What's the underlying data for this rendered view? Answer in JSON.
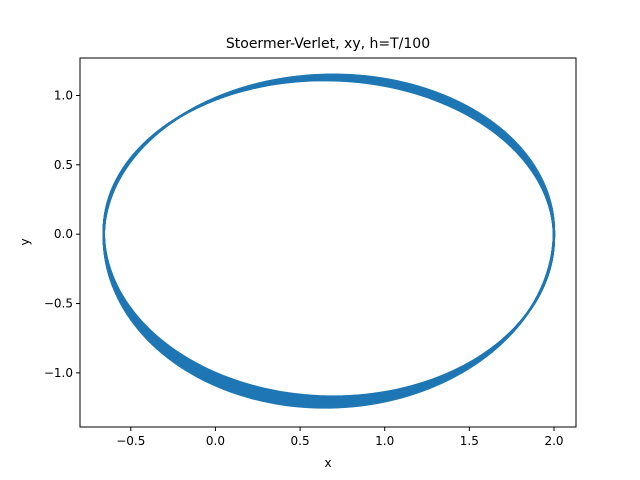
{
  "chart_data": {
    "type": "line",
    "title": "Stoermer-Verlet, xy, h=T/100",
    "xlabel": "x",
    "ylabel": "y",
    "xlim": [
      -0.8,
      2.13
    ],
    "ylim": [
      -1.39,
      1.27
    ],
    "xticks": [
      -0.5,
      0.0,
      0.5,
      1.0,
      1.5,
      2.0
    ],
    "xtick_labels": [
      "−0.5",
      "0.0",
      "0.5",
      "1.0",
      "1.5",
      "2.0"
    ],
    "yticks": [
      -1.0,
      -0.5,
      0.0,
      0.5,
      1.0
    ],
    "ytick_labels": [
      "−1.0",
      "−0.5",
      "0.0",
      "0.5",
      "1.0"
    ],
    "grid": false,
    "series": [
      {
        "color": "#1f77b4",
        "orbit": {
          "x_min": -0.66,
          "x_max": 2.0,
          "y_top_range": [
            1.11,
            1.15
          ],
          "y_bottom_range": [
            -1.17,
            -1.25
          ],
          "precession": "band"
        }
      }
    ]
  }
}
